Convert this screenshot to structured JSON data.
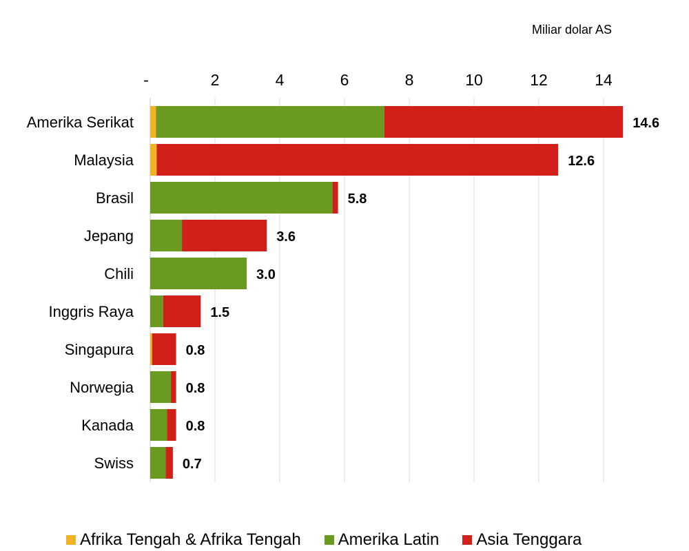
{
  "chart_data": {
    "type": "bar",
    "orientation": "horizontal",
    "stacked": true,
    "unit_label": "Miliar dolar AS",
    "x_tick_labels": [
      "-",
      "2",
      "4",
      "6",
      "8",
      "10",
      "12",
      "14"
    ],
    "xlim": [
      0,
      15
    ],
    "grid": "vertical",
    "legend_position": "bottom",
    "categories": [
      "Amerika Serikat",
      "Malaysia",
      "Brasil",
      "Jepang",
      "Chili",
      "Inggris Raya",
      "Singapura",
      "Norwegia",
      "Kanada",
      "Swiss"
    ],
    "totals": [
      "14.6",
      "12.6",
      "5.8",
      "3.6",
      "3.0",
      "1.5",
      "0.8",
      "0.8",
      "0.8",
      "0.7"
    ],
    "series": [
      {
        "name": "Afrika Tengah & Afrika Tengah",
        "color": "#f0b323",
        "values": [
          0.18,
          0.2,
          0,
          0,
          0,
          0,
          0.06,
          0,
          0,
          0
        ]
      },
      {
        "name": "Amerika Latin",
        "color": "#6a9a1f",
        "values": [
          7.05,
          0,
          5.63,
          0.98,
          2.98,
          0.4,
          0,
          0.64,
          0.52,
          0.48
        ]
      },
      {
        "name": "Asia Tenggara",
        "color": "#d11f1a",
        "values": [
          7.37,
          12.4,
          0.17,
          2.62,
          0,
          1.16,
          0.74,
          0.16,
          0.28,
          0.22
        ]
      }
    ]
  }
}
